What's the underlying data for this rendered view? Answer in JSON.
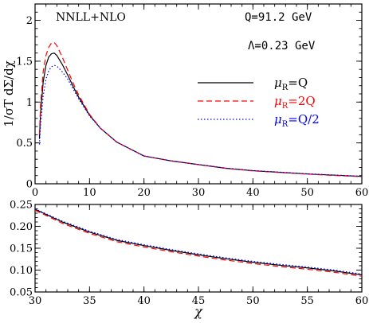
{
  "chart_data": [
    {
      "type": "line",
      "xlim": [
        0,
        60
      ],
      "ylim": [
        0,
        2.2
      ],
      "xticks": [
        "0",
        "10",
        "20",
        "30",
        "40",
        "50",
        "60"
      ],
      "yticks": [
        "0",
        "0.5",
        "1",
        "1.5",
        "2"
      ],
      "ylabel": "1/σT dΣ/dχ",
      "annotations": {
        "order": "NNLL+NLO",
        "energy": "Q=91.2 GeV",
        "lambda": "Λ=0.23 GeV"
      },
      "legend": {
        "placement": "center-right",
        "entries": [
          {
            "prefix": "μ",
            "sub": "R",
            "text": "=Q",
            "color": "#000000",
            "dash": "solid"
          },
          {
            "prefix": "μ",
            "sub": "R",
            "text": "=2Q",
            "color": "#ff0000",
            "dash": "dashed"
          },
          {
            "prefix": "μ",
            "sub": "R",
            "text": "=Q/2",
            "color": "#0000ff",
            "dash": "dotted"
          }
        ]
      },
      "x": [
        0.8,
        1.0,
        1.5,
        2.0,
        2.5,
        3.0,
        3.5,
        4.0,
        5.0,
        6.0,
        7.0,
        8.0,
        10.0,
        12.0,
        15.0,
        20.0,
        25.0,
        30.0,
        35.0,
        40.0,
        45.0,
        50.0,
        55.0,
        60.0
      ],
      "series": [
        {
          "color": "#000000",
          "dash": "solid",
          "values": [
            0.55,
            0.85,
            1.25,
            1.45,
            1.55,
            1.59,
            1.6,
            1.57,
            1.46,
            1.33,
            1.19,
            1.06,
            0.84,
            0.68,
            0.51,
            0.34,
            0.28,
            0.235,
            0.19,
            0.16,
            0.14,
            0.12,
            0.105,
            0.09
          ]
        },
        {
          "color": "#ff0000",
          "dash": "dashed",
          "values": [
            0.6,
            0.95,
            1.38,
            1.57,
            1.67,
            1.72,
            1.73,
            1.69,
            1.55,
            1.39,
            1.23,
            1.09,
            0.85,
            0.68,
            0.51,
            0.34,
            0.28,
            0.235,
            0.188,
            0.158,
            0.138,
            0.118,
            0.102,
            0.087
          ]
        },
        {
          "color": "#0000ff",
          "dash": "dotted",
          "values": [
            0.48,
            0.72,
            1.08,
            1.28,
            1.38,
            1.43,
            1.45,
            1.44,
            1.37,
            1.28,
            1.16,
            1.04,
            0.83,
            0.68,
            0.51,
            0.34,
            0.28,
            0.236,
            0.192,
            0.162,
            0.142,
            0.122,
            0.107,
            0.092
          ]
        }
      ]
    },
    {
      "type": "line",
      "xlim": [
        30,
        60
      ],
      "ylim": [
        0.05,
        0.25
      ],
      "xticks": [
        "30",
        "35",
        "40",
        "45",
        "50",
        "55",
        "60"
      ],
      "yticks": [
        "0.05",
        "0.10",
        "0.15",
        "0.20",
        "0.25"
      ],
      "xlabel": "χ",
      "x": [
        30,
        32.5,
        35,
        37.5,
        40,
        42.5,
        45,
        47.5,
        50,
        52.5,
        55,
        57.5,
        60
      ],
      "series": [
        {
          "color": "#000000",
          "dash": "solid",
          "values": [
            0.239,
            0.21,
            0.187,
            0.168,
            0.156,
            0.145,
            0.135,
            0.126,
            0.118,
            0.111,
            0.105,
            0.098,
            0.089
          ]
        },
        {
          "color": "#ff0000",
          "dash": "dashed",
          "values": [
            0.237,
            0.207,
            0.184,
            0.165,
            0.153,
            0.142,
            0.132,
            0.123,
            0.115,
            0.108,
            0.102,
            0.095,
            0.086
          ]
        },
        {
          "color": "#0000ff",
          "dash": "dotted",
          "values": [
            0.24,
            0.212,
            0.189,
            0.17,
            0.158,
            0.147,
            0.137,
            0.128,
            0.12,
            0.113,
            0.107,
            0.1,
            0.091
          ]
        }
      ]
    }
  ]
}
